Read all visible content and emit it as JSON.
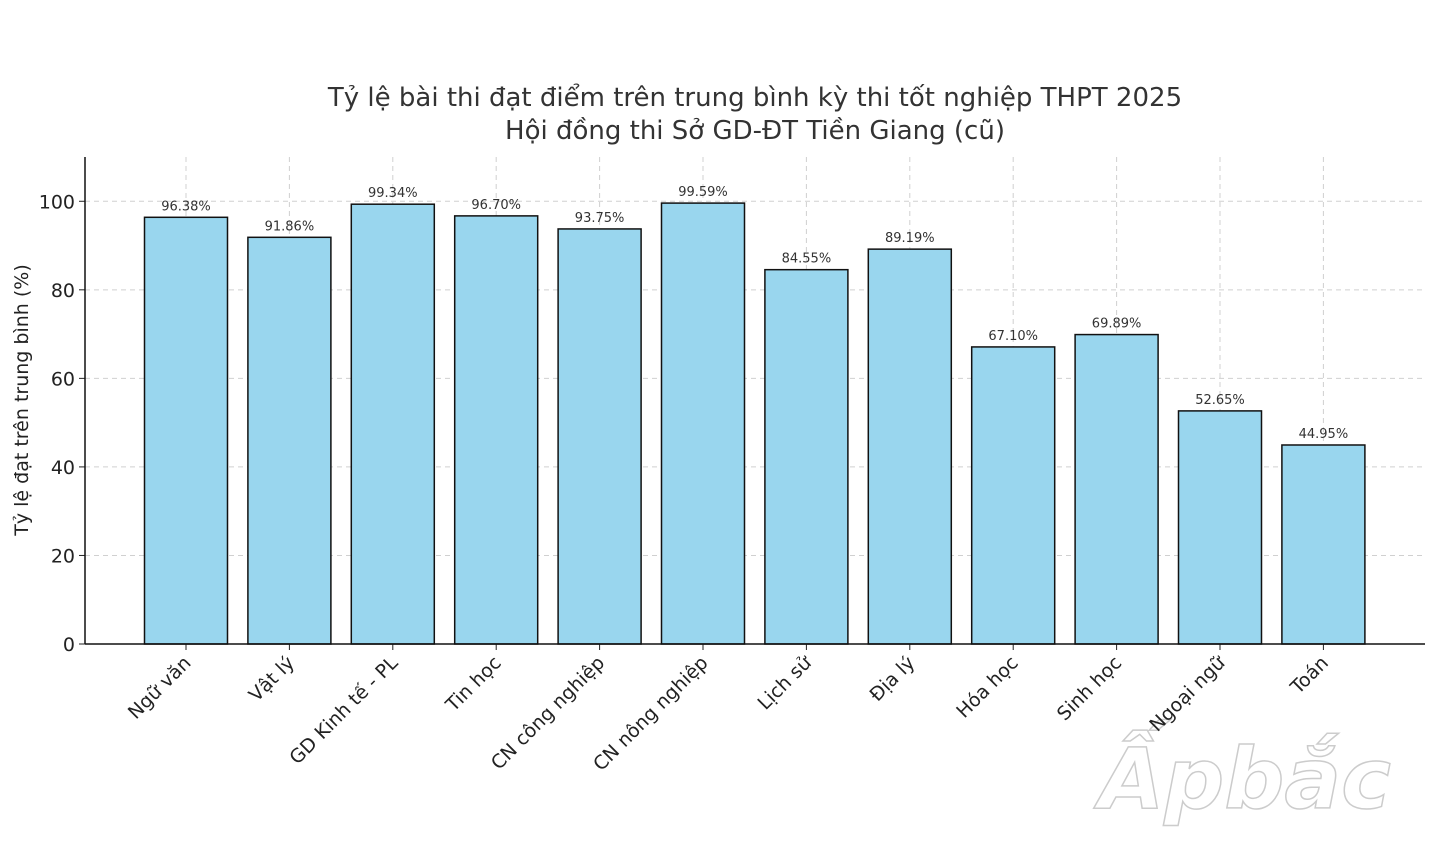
{
  "chart_data": {
    "type": "bar",
    "title": "Tỷ lệ bài thi đạt điểm trên trung bình kỳ thi tốt nghiệp THPT 2025",
    "subtitle": "Hội đồng thi Sở GD-ĐT Tiền Giang (cũ)",
    "y_label": "Tỷ lệ đạt trên trung bình (%)",
    "categories": [
      "Ngữ văn",
      "Vật lý",
      "GD Kinh tế - PL",
      "Tin học",
      "CN công nghiệp",
      "CN nông nghiệp",
      "Lịch sử",
      "Địa lý",
      "Hóa học",
      "Sinh học",
      "Ngoại ngữ",
      "Toán"
    ],
    "values": [
      96.38,
      91.86,
      99.34,
      96.7,
      93.75,
      99.59,
      84.55,
      89.19,
      67.1,
      69.89,
      52.65,
      44.95
    ],
    "value_labels": [
      "96.38%",
      "91.86%",
      "99.34%",
      "96.70%",
      "93.75%",
      "99.59%",
      "84.55%",
      "89.19%",
      "67.10%",
      "69.89%",
      "52.65%",
      "44.95%"
    ],
    "color": "#99d6ee",
    "ylim": [
      0,
      110
    ],
    "yticks": [
      0,
      20,
      40,
      60,
      80,
      100
    ],
    "grid": true,
    "watermark": "Ấpbắc"
  }
}
